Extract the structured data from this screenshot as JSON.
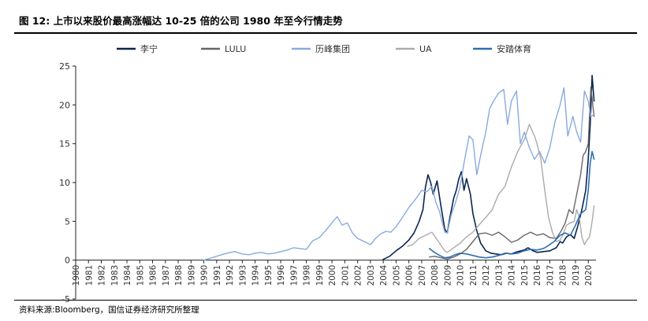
{
  "figure": {
    "title": "图 12:  上市以来股价最高涨幅达 10-25 倍的公司 1980 年至今行情走势",
    "source": "资料来源:Bloomberg，国信证券经济研究所整理"
  },
  "chart_data": {
    "type": "line",
    "title": "",
    "xlabel": "",
    "ylabel": "",
    "xlim": [
      1980,
      2020.6
    ],
    "ylim": [
      -5,
      25
    ],
    "y_ticks": [
      -5,
      0,
      5,
      10,
      15,
      20,
      25
    ],
    "x_ticks": [
      "1980",
      "1981",
      "1982",
      "1983",
      "1984",
      "1985",
      "1986",
      "1987",
      "1988",
      "1989",
      "1990",
      "1991",
      "1992",
      "1993",
      "1994",
      "1995",
      "1996",
      "1997",
      "1998",
      "1999",
      "2000",
      "2001",
      "2002",
      "2003",
      "2004",
      "2005",
      "2006",
      "2007",
      "2008",
      "2009",
      "2010",
      "2011",
      "2012",
      "2013",
      "2014",
      "2015",
      "2016",
      "2017",
      "2018",
      "2019",
      "2020"
    ],
    "grid": false,
    "legend_position": "top",
    "series": [
      {
        "name": "李宁",
        "color": "#0b2550",
        "width": 1.6,
        "x": [
          2004.0,
          2004.5,
          2005.0,
          2005.5,
          2006.0,
          2006.4,
          2006.8,
          2007.1,
          2007.3,
          2007.5,
          2007.7,
          2007.9,
          2008.2,
          2008.5,
          2008.8,
          2009.0,
          2009.2,
          2009.5,
          2009.7,
          2009.9,
          2010.1,
          2010.3,
          2010.5,
          2010.8,
          2011.0,
          2011.3,
          2011.6,
          2012.0,
          2012.4,
          2012.8,
          2013.2,
          2013.6,
          2014.0,
          2014.5,
          2015.0,
          2015.3,
          2015.7,
          2016.0,
          2016.5,
          2017.0,
          2017.5,
          2017.8,
          2018.0,
          2018.3,
          2018.6,
          2018.9,
          2019.2,
          2019.5,
          2019.8,
          2020.0,
          2020.15,
          2020.3,
          2020.45
        ],
        "y": [
          0.1,
          0.5,
          1.2,
          1.8,
          2.6,
          3.5,
          5.0,
          6.5,
          9.5,
          11.0,
          10.0,
          8.5,
          10.2,
          7.0,
          4.0,
          3.5,
          5.5,
          8.0,
          9.0,
          10.5,
          11.4,
          9.0,
          10.5,
          8.5,
          6.0,
          3.8,
          2.2,
          1.2,
          0.9,
          0.8,
          0.7,
          0.9,
          0.8,
          1.1,
          1.3,
          1.6,
          1.2,
          1.0,
          1.1,
          1.2,
          1.6,
          2.4,
          2.2,
          3.0,
          3.3,
          2.8,
          4.5,
          6.5,
          9.0,
          13.0,
          17.5,
          23.8,
          20.5
        ]
      },
      {
        "name": "LULU",
        "color": "#666666",
        "width": 1.4,
        "x": [
          2007.6,
          2008.0,
          2008.5,
          2009.0,
          2009.5,
          2010.0,
          2010.5,
          2011.0,
          2011.5,
          2012.0,
          2012.5,
          2013.0,
          2013.5,
          2014.0,
          2014.5,
          2015.0,
          2015.5,
          2016.0,
          2016.5,
          2017.0,
          2017.5,
          2017.9,
          2018.2,
          2018.5,
          2018.8,
          2019.1,
          2019.4,
          2019.6,
          2019.8,
          2020.0,
          2020.2,
          2020.45
        ],
        "y": [
          0.4,
          0.5,
          0.3,
          0.15,
          0.4,
          0.8,
          1.4,
          2.4,
          3.4,
          3.5,
          3.2,
          3.6,
          3.0,
          2.3,
          2.6,
          3.2,
          3.6,
          3.2,
          3.4,
          2.9,
          2.8,
          3.8,
          4.8,
          6.5,
          6.0,
          8.5,
          11.0,
          13.5,
          14.0,
          15.0,
          22.3,
          18.5
        ]
      },
      {
        "name": "历峰集团",
        "color": "#89aadf",
        "width": 1.4,
        "x": [
          1990.0,
          1990.6,
          1991.2,
          1991.8,
          1992.4,
          1993.0,
          1993.5,
          1994.0,
          1994.5,
          1995.0,
          1995.5,
          1996.0,
          1996.5,
          1997.0,
          1997.5,
          1998.0,
          1998.5,
          1999.0,
          1999.5,
          2000.0,
          2000.4,
          2000.8,
          2001.2,
          2001.6,
          2002.0,
          2002.5,
          2003.0,
          2003.4,
          2003.8,
          2004.2,
          2004.6,
          2005.0,
          2005.5,
          2006.0,
          2006.5,
          2007.0,
          2007.4,
          2007.8,
          2008.1,
          2008.4,
          2008.8,
          2009.0,
          2009.3,
          2009.6,
          2010.0,
          2010.3,
          2010.7,
          2011.0,
          2011.3,
          2011.6,
          2012.0,
          2012.3,
          2012.6,
          2013.0,
          2013.4,
          2013.7,
          2014.0,
          2014.4,
          2014.7,
          2015.0,
          2015.4,
          2015.8,
          2016.2,
          2016.6,
          2017.0,
          2017.4,
          2017.8,
          2018.1,
          2018.4,
          2018.8,
          2019.1,
          2019.4,
          2019.7,
          2020.0,
          2020.2,
          2020.45
        ],
        "y": [
          0.0,
          0.3,
          0.6,
          0.9,
          1.1,
          0.8,
          0.7,
          0.9,
          1.0,
          0.8,
          0.9,
          1.1,
          1.3,
          1.6,
          1.5,
          1.4,
          2.5,
          2.9,
          3.8,
          4.8,
          5.6,
          4.5,
          4.8,
          3.5,
          2.8,
          2.4,
          2.0,
          2.8,
          3.4,
          3.7,
          3.6,
          4.3,
          5.5,
          6.8,
          7.8,
          9.0,
          8.8,
          9.5,
          7.5,
          6.2,
          3.6,
          3.5,
          5.8,
          7.2,
          9.5,
          12.5,
          16.0,
          15.5,
          11.0,
          13.5,
          16.5,
          19.5,
          20.5,
          21.5,
          22.0,
          17.5,
          20.5,
          21.8,
          15.0,
          16.5,
          14.5,
          13.0,
          14.0,
          12.5,
          14.5,
          17.8,
          20.0,
          22.2,
          16.0,
          18.5,
          16.5,
          15.2,
          21.8,
          20.5,
          18.5,
          18.8
        ]
      },
      {
        "name": "UA",
        "color": "#aaaaaa",
        "width": 1.4,
        "x": [
          2005.9,
          2006.3,
          2006.8,
          2007.3,
          2007.8,
          2008.3,
          2008.8,
          2009.0,
          2009.5,
          2010.0,
          2010.5,
          2011.0,
          2011.5,
          2012.0,
          2012.5,
          2013.0,
          2013.5,
          2014.0,
          2014.5,
          2015.0,
          2015.4,
          2015.8,
          2016.0,
          2016.3,
          2016.6,
          2016.9,
          2017.2,
          2017.5,
          2017.8,
          2018.0,
          2018.3,
          2018.6,
          2018.9,
          2019.1,
          2019.3,
          2019.5,
          2019.7,
          2019.9,
          2020.1,
          2020.3,
          2020.45
        ],
        "y": [
          1.8,
          2.0,
          2.8,
          3.2,
          3.6,
          2.4,
          1.2,
          1.0,
          1.6,
          2.2,
          3.0,
          3.6,
          4.6,
          5.5,
          6.5,
          8.5,
          9.5,
          12.0,
          14.0,
          15.5,
          17.5,
          16.0,
          15.0,
          13.0,
          9.0,
          5.5,
          3.6,
          2.4,
          2.6,
          3.2,
          4.5,
          4.8,
          5.0,
          6.5,
          5.5,
          3.0,
          2.0,
          2.6,
          3.0,
          5.0,
          7.0
        ]
      },
      {
        "name": "安踏体育",
        "color": "#2e6fb3",
        "width": 1.6,
        "x": [
          2007.6,
          2008.0,
          2008.4,
          2008.8,
          2009.2,
          2009.6,
          2010.0,
          2010.5,
          2011.0,
          2011.5,
          2012.0,
          2012.5,
          2013.0,
          2013.5,
          2014.0,
          2014.5,
          2015.0,
          2015.5,
          2016.0,
          2016.5,
          2017.0,
          2017.4,
          2017.8,
          2018.2,
          2018.6,
          2019.0,
          2019.4,
          2019.8,
          2020.0,
          2020.15,
          2020.3,
          2020.45
        ],
        "y": [
          1.5,
          1.0,
          0.6,
          0.3,
          0.4,
          0.7,
          0.9,
          0.8,
          0.6,
          0.4,
          0.3,
          0.4,
          0.6,
          0.9,
          0.8,
          0.9,
          1.2,
          1.4,
          1.3,
          1.5,
          2.0,
          2.5,
          3.2,
          3.5,
          3.2,
          4.5,
          6.0,
          6.5,
          9.0,
          12.5,
          14.0,
          13.0
        ]
      }
    ]
  }
}
